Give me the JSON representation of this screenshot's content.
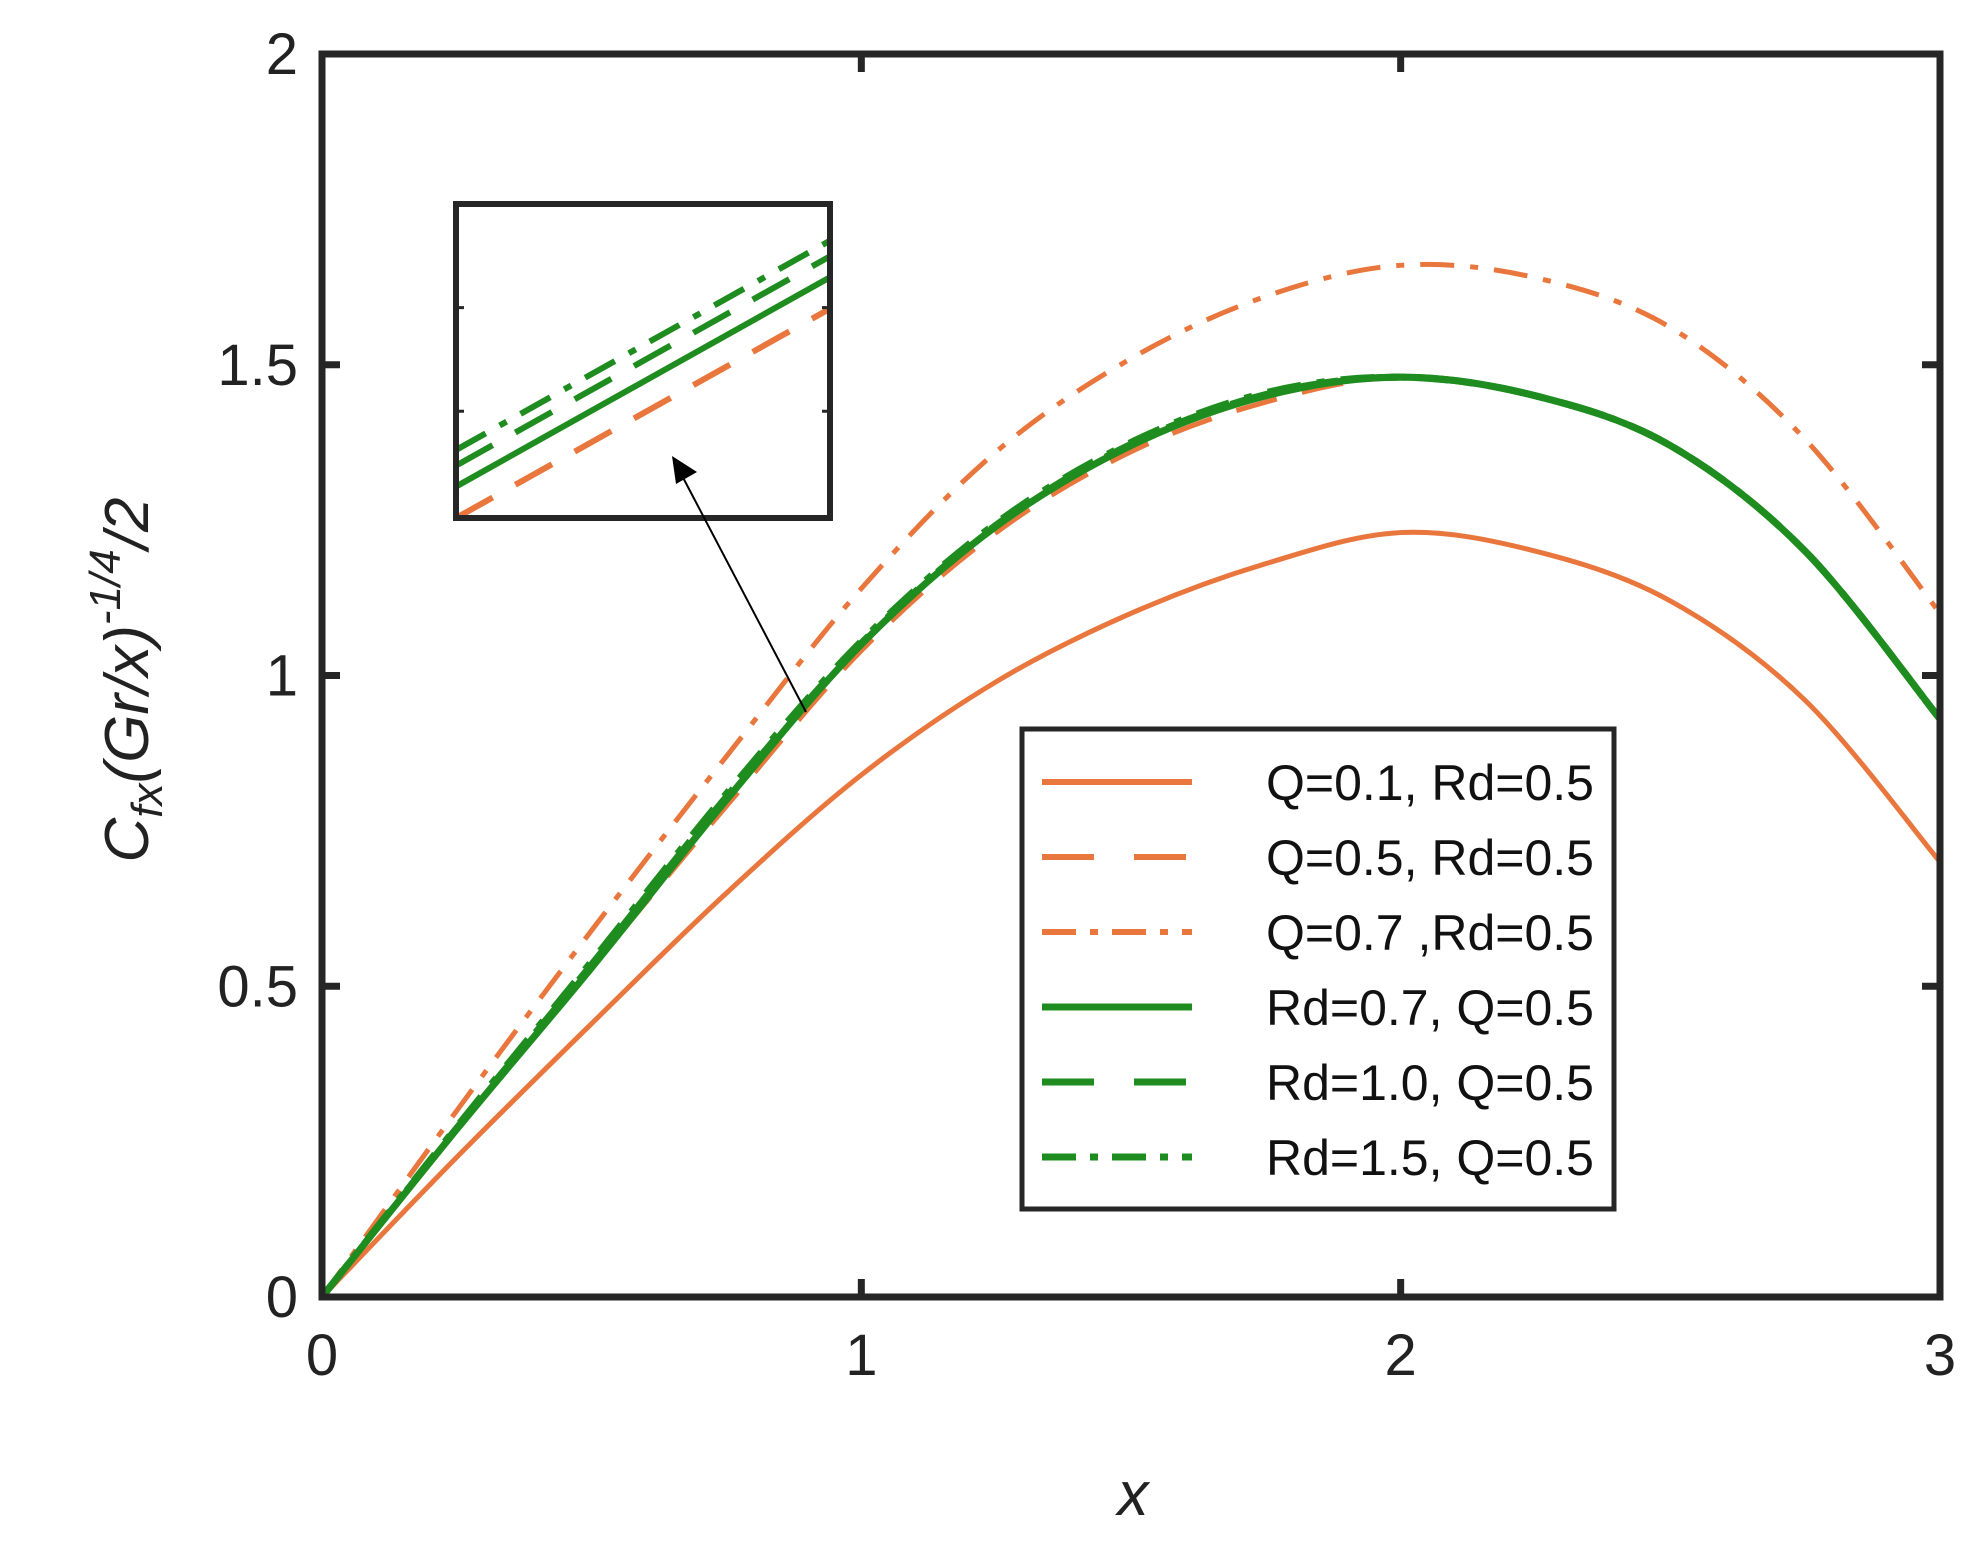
{
  "chart_data": {
    "type": "line",
    "xlabel": "x",
    "ylabel": {
      "base": "C",
      "sub": "fx",
      "mid": "(Gr/x)",
      "sup": "-1/4",
      "tail": "/2"
    },
    "xlim": [
      0,
      3
    ],
    "ylim": [
      0,
      2
    ],
    "xticks": [
      0,
      1,
      2,
      3
    ],
    "xtick_labels": [
      "0",
      "1",
      "2",
      "3"
    ],
    "yticks": [
      0,
      0.5,
      1,
      1.5,
      2
    ],
    "ytick_labels": [
      "0",
      "0.5",
      "1",
      "1.5",
      "2"
    ],
    "grid": false,
    "legend_position": "center-right",
    "colors": {
      "orange": "#E9773D",
      "green": "#1E8C1E"
    },
    "series": [
      {
        "name": "Q=0.1, Rd=0.5",
        "color": "#E9773D",
        "style": "solid",
        "points": [
          [
            0,
            0
          ],
          [
            0.25,
            0.225
          ],
          [
            0.5,
            0.44
          ],
          [
            0.75,
            0.65
          ],
          [
            1,
            0.84
          ],
          [
            1.25,
            0.99
          ],
          [
            1.5,
            1.1
          ],
          [
            1.75,
            1.18
          ],
          [
            2,
            1.23
          ],
          [
            2.25,
            1.2
          ],
          [
            2.5,
            1.12
          ],
          [
            2.75,
            0.96
          ],
          [
            3,
            0.7
          ]
        ]
      },
      {
        "name": "Q=0.5, Rd=0.5",
        "color": "#E9773D",
        "style": "dashed",
        "points": [
          [
            0,
            0
          ],
          [
            0.25,
            0.27
          ],
          [
            0.5,
            0.53
          ],
          [
            0.75,
            0.79
          ],
          [
            1,
            1.04
          ],
          [
            1.25,
            1.23
          ],
          [
            1.5,
            1.36
          ],
          [
            1.75,
            1.44
          ],
          [
            2,
            1.48
          ],
          [
            2.25,
            1.45
          ],
          [
            2.5,
            1.37
          ],
          [
            2.75,
            1.2
          ],
          [
            3,
            0.93
          ]
        ]
      },
      {
        "name": "Q=0.7 ,Rd=0.5",
        "color": "#E9773D",
        "style": "dashdot",
        "points": [
          [
            0,
            0
          ],
          [
            0.25,
            0.3
          ],
          [
            0.5,
            0.59
          ],
          [
            0.75,
            0.87
          ],
          [
            1,
            1.14
          ],
          [
            1.25,
            1.36
          ],
          [
            1.5,
            1.51
          ],
          [
            1.75,
            1.61
          ],
          [
            2,
            1.66
          ],
          [
            2.25,
            1.64
          ],
          [
            2.5,
            1.56
          ],
          [
            2.75,
            1.38
          ],
          [
            3,
            1.1
          ]
        ]
      },
      {
        "name": "Rd=0.7, Q=0.5",
        "color": "#1E8C1E",
        "style": "solid",
        "points": [
          [
            0,
            0
          ],
          [
            0.25,
            0.27
          ],
          [
            0.5,
            0.53
          ],
          [
            0.75,
            0.8
          ],
          [
            1,
            1.05
          ],
          [
            1.25,
            1.24
          ],
          [
            1.5,
            1.37
          ],
          [
            1.75,
            1.45
          ],
          [
            2,
            1.48
          ],
          [
            2.25,
            1.45
          ],
          [
            2.5,
            1.37
          ],
          [
            2.75,
            1.2
          ],
          [
            3,
            0.93
          ]
        ]
      },
      {
        "name": "Rd=1.0, Q=0.5",
        "color": "#1E8C1E",
        "style": "dashed",
        "points": [
          [
            0,
            0
          ],
          [
            0.25,
            0.272
          ],
          [
            0.5,
            0.535
          ],
          [
            0.75,
            0.805
          ],
          [
            1,
            1.052
          ],
          [
            1.25,
            1.242
          ],
          [
            1.5,
            1.372
          ],
          [
            1.75,
            1.452
          ],
          [
            2,
            1.48
          ],
          [
            2.25,
            1.45
          ],
          [
            2.5,
            1.37
          ],
          [
            2.75,
            1.2
          ],
          [
            3,
            0.93
          ]
        ]
      },
      {
        "name": "Rd=1.5, Q=0.5",
        "color": "#1E8C1E",
        "style": "dashdot",
        "points": [
          [
            0,
            0
          ],
          [
            0.25,
            0.274
          ],
          [
            0.5,
            0.54
          ],
          [
            0.75,
            0.81
          ],
          [
            1,
            1.055
          ],
          [
            1.25,
            1.245
          ],
          [
            1.5,
            1.375
          ],
          [
            1.75,
            1.455
          ],
          [
            2,
            1.48
          ],
          [
            2.25,
            1.45
          ],
          [
            2.5,
            1.37
          ],
          [
            2.75,
            1.2
          ],
          [
            3,
            0.93
          ]
        ]
      }
    ]
  }
}
